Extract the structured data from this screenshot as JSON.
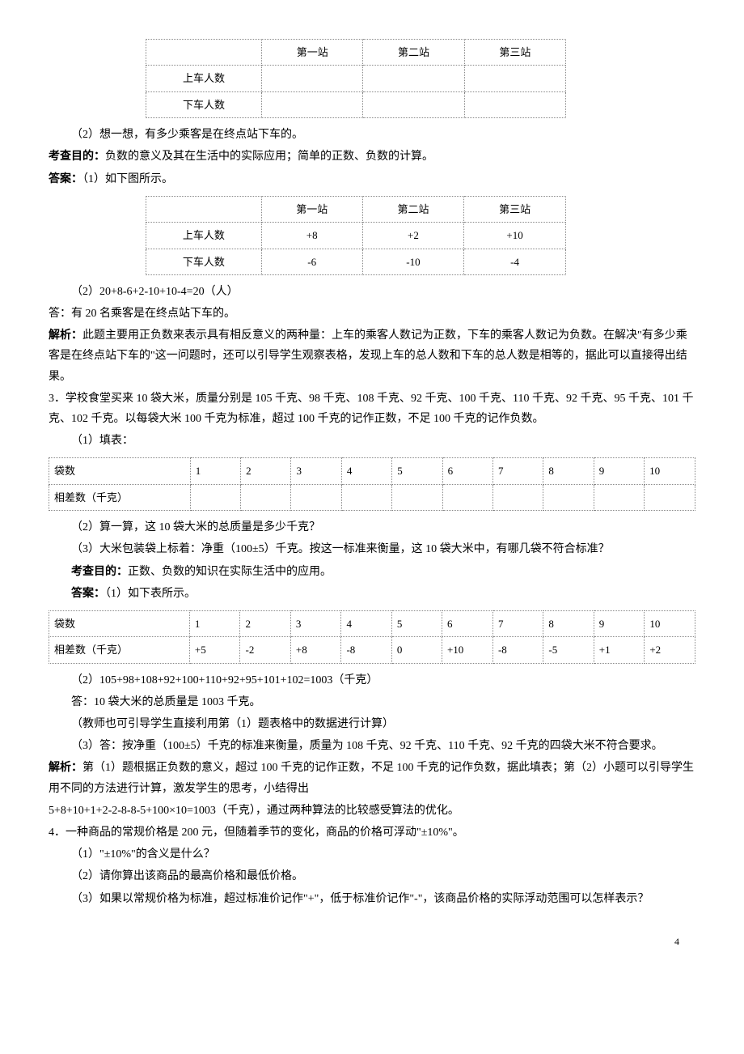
{
  "tables": {
    "bus_blank": {
      "headers": [
        "",
        "第一站",
        "第二站",
        "第三站"
      ],
      "rows": [
        [
          "上车人数",
          "",
          "",
          ""
        ],
        [
          "下车人数",
          "",
          "",
          ""
        ]
      ]
    },
    "bus_filled": {
      "headers": [
        "",
        "第一站",
        "第二站",
        "第三站"
      ],
      "rows": [
        [
          "上车人数",
          "+8",
          "+2",
          "+10"
        ],
        [
          "下车人数",
          "-6",
          "-10",
          "-4"
        ]
      ]
    },
    "rice_blank": {
      "row_labels": [
        "袋数",
        "相差数（千克）"
      ],
      "cols": [
        "1",
        "2",
        "3",
        "4",
        "5",
        "6",
        "7",
        "8",
        "9",
        "10"
      ],
      "values": [
        "",
        "",
        "",
        "",
        "",
        "",
        "",
        "",
        "",
        ""
      ]
    },
    "rice_filled": {
      "row_labels": [
        "袋数",
        "相差数（千克）"
      ],
      "cols": [
        "1",
        "2",
        "3",
        "4",
        "5",
        "6",
        "7",
        "8",
        "9",
        "10"
      ],
      "values": [
        "+5",
        "-2",
        "+8",
        "-8",
        "0",
        "+10",
        "-8",
        "-5",
        "+1",
        "+2"
      ]
    }
  },
  "text": {
    "p1": "（2）想一想，有多少乘客是在终点站下车的。",
    "p2a": "考查目的：",
    "p2b": "负数的意义及其在生活中的实际应用；简单的正数、负数的计算。",
    "p3a": "答案：",
    "p3b": "（1）如下图所示。",
    "p4": "（2）20+8-6+2-10+10-4=20（人）",
    "p5": "答：有 20 名乘客是在终点站下车的。",
    "p6a": "解析：",
    "p6b": "此题主要用正负数来表示具有相反意义的两种量：上车的乘客人数记为正数，下车的乘客人数记为负数。在解决\"有多少乘客是在终点站下车的\"这一问题时，还可以引导学生观察表格，发现上车的总人数和下车的总人数是相等的，据此可以直接得出结果。",
    "p7": "3．学校食堂买来 10 袋大米，质量分别是 105 千克、98 千克、108 千克、92 千克、100 千克、110 千克、92 千克、95 千克、101 千克、102 千克。以每袋大米 100 千克为标准，超过 100 千克的记作正数，不足 100 千克的记作负数。",
    "p8": "（1）填表：",
    "p9": "（2）算一算，这 10 袋大米的总质量是多少千克？",
    "p10": "（3）大米包装袋上标着：净重（100±5）千克。按这一标准来衡量，这 10 袋大米中，有哪几袋不符合标准？",
    "p11a": "考查目的：",
    "p11b": "正数、负数的知识在实际生活中的应用。",
    "p12a": "答案：",
    "p12b": "（1）如下表所示。",
    "p13": "（2）105+98+108+92+100+110+92+95+101+102=1003（千克）",
    "p14": "答：10 袋大米的总质量是 1003 千克。",
    "p15": "（教师也可引导学生直接利用第（1）题表格中的数据进行计算）",
    "p16": "（3）答：按净重（100±5）千克的标准来衡量，质量为 108 千克、92 千克、110 千克、92 千克的四袋大米不符合要求。",
    "p17a": "解析：",
    "p17b": "第（1）题根据正负数的意义，超过 100 千克的记作正数，不足 100 千克的记作负数，据此填表；第（2）小题可以引导学生用不同的方法进行计算，激发学生的思考，小结得出",
    "p18": "5+8+10+1+2-2-8-8-5+100×10=1003（千克），通过两种算法的比较感受算法的优化。",
    "p19": "4．一种商品的常规价格是 200 元，但随着季节的变化，商品的价格可浮动\"±10%\"。",
    "p20": "（1）\"±10%\"的含义是什么？",
    "p21": "（2）请你算出该商品的最高价格和最低价格。",
    "p22": "（3）如果以常规价格为标准，超过标准价记作\"+\"，低于标准价记作\"-\"，该商品价格的实际浮动范围可以怎样表示？",
    "pagenum": "4"
  }
}
